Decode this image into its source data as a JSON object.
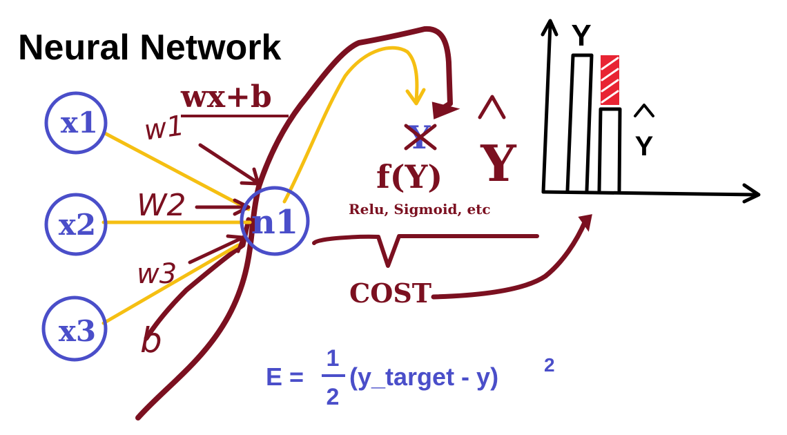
{
  "title": "Neural Network",
  "formula_top": "wx+b",
  "inputs": [
    {
      "label": "x1"
    },
    {
      "label": "x2"
    },
    {
      "label": "x3"
    }
  ],
  "weights": [
    {
      "label": "w1"
    },
    {
      "label": "W2"
    },
    {
      "label": "w3"
    }
  ],
  "bias_label": "b",
  "neuron_label": "n1",
  "struck_y": "Y",
  "activation": "f(Y)",
  "activation_examples": "Relu, Sigmoid, etc",
  "y_hat": "Y",
  "cost_label": "COST",
  "error_formula": {
    "lhs": "E =",
    "numerator": "1",
    "denominator": "2",
    "body": "(y_target - y)",
    "exponent": "2"
  },
  "chart": {
    "y_axis_label": "Y",
    "y_hat_label": "Y"
  },
  "colors": {
    "blue": "#4a4ec9",
    "maroon": "#7b1020",
    "yellow": "#f5bf12",
    "red": "#e82433",
    "black": "#000000"
  }
}
